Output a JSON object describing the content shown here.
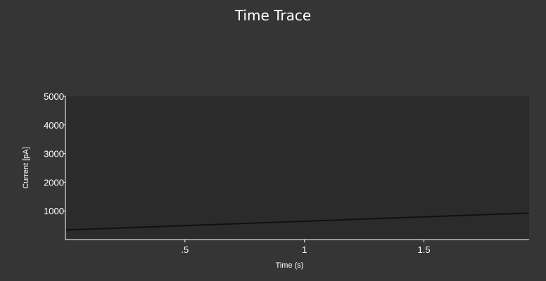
{
  "chart_data": {
    "type": "line",
    "title": "Time Trace",
    "xlabel": "Time (s)",
    "ylabel": "Current [pA]",
    "xlim": [
      0,
      1.94
    ],
    "ylim": [
      0,
      5000
    ],
    "x_ticks": [
      {
        "value": 0.5,
        "label": ".5"
      },
      {
        "value": 1.0,
        "label": "1"
      },
      {
        "value": 1.5,
        "label": "1.5"
      }
    ],
    "y_ticks": [
      {
        "value": 1000,
        "label": "1000"
      },
      {
        "value": 2000,
        "label": "2000"
      },
      {
        "value": 3000,
        "label": "3000"
      },
      {
        "value": 4000,
        "label": "4000"
      },
      {
        "value": 5000,
        "label": "5000"
      }
    ],
    "series": [
      {
        "color": "#111111",
        "x": [
          0,
          0.02,
          1.92,
          1.94
        ],
        "y": [
          340,
          340,
          920,
          920
        ]
      }
    ],
    "grid": false,
    "legend": "none",
    "colors": {
      "background": "#353535",
      "plot_area": "#2b2b2b",
      "axis": "#ffffff",
      "text": "#ffffff"
    }
  }
}
